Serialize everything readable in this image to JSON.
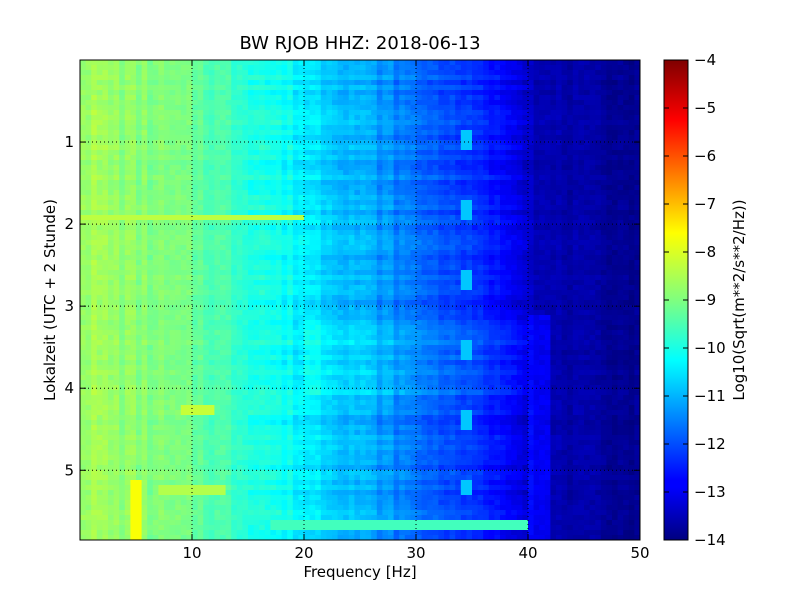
{
  "chart_data": {
    "type": "heatmap",
    "title": "BW RJOB HHZ: 2018-06-13",
    "xlabel": "Frequency [Hz]",
    "ylabel": "Lokalzeit (UTC + 2 Stunde)",
    "xlim": [
      0,
      50
    ],
    "ylim": [
      5.85,
      0.0
    ],
    "x_ticks": [
      10,
      20,
      30,
      40,
      50
    ],
    "y_ticks": [
      1,
      2,
      3,
      4,
      5
    ],
    "grid": true,
    "colorbar": {
      "label": "Log10(Sqrt(m**2/s**2/Hz))",
      "range": [
        -14,
        -4
      ],
      "ticks": [
        -14,
        -13,
        -12,
        -11,
        -10,
        -9,
        -8,
        -7,
        -6,
        -5,
        -4
      ],
      "colormap": "jet"
    },
    "spectrum_profile": [
      {
        "freq": 0,
        "value": -8.6
      },
      {
        "freq": 5,
        "value": -8.9
      },
      {
        "freq": 10,
        "value": -9.2
      },
      {
        "freq": 15,
        "value": -9.8
      },
      {
        "freq": 20,
        "value": -10.4
      },
      {
        "freq": 25,
        "value": -11.0
      },
      {
        "freq": 30,
        "value": -11.7
      },
      {
        "freq": 35,
        "value": -12.3
      },
      {
        "freq": 39,
        "value": -12.9
      },
      {
        "freq": 41,
        "value": -13.5
      },
      {
        "freq": 50,
        "value": -13.85
      }
    ],
    "features": [
      {
        "kind": "band",
        "freq_from": 9,
        "freq_to": 12,
        "time": 4.28,
        "value": -8.3
      },
      {
        "kind": "band",
        "freq_from": 7,
        "freq_to": 13,
        "time": 5.24,
        "value": -8.5
      },
      {
        "kind": "band",
        "freq_from": 17,
        "freq_to": 40,
        "time": 5.65,
        "value": -9.6
      },
      {
        "kind": "band",
        "freq_from": 0,
        "freq_to": 20,
        "time": 1.92,
        "value": -8.4
      },
      {
        "kind": "line",
        "freq": 5,
        "time_from": 5.1,
        "time_to": 5.85,
        "value": -7.8
      },
      {
        "kind": "line",
        "freq": 34.5,
        "time_from": 0.3,
        "time_to": 5.3,
        "value": -10.8
      }
    ]
  }
}
